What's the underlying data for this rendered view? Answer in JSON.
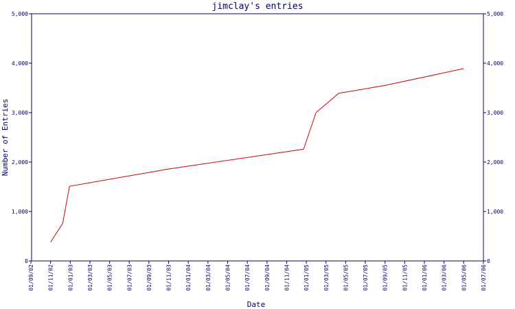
{
  "chart_data": {
    "type": "line",
    "title": "jimclay's entries",
    "xlabel": "Date",
    "ylabel": "Number of Entries",
    "ylim": [
      0,
      5000
    ],
    "y_ticks": [
      {
        "value": 0,
        "label": "0"
      },
      {
        "value": 1000,
        "label": "1,000"
      },
      {
        "value": 2000,
        "label": "2,000"
      },
      {
        "value": 3000,
        "label": "3,000"
      },
      {
        "value": 4000,
        "label": "4,000"
      },
      {
        "value": 5000,
        "label": "5,000"
      }
    ],
    "x_ticks": [
      "01/09/02",
      "01/11/02",
      "01/01/03",
      "01/03/03",
      "01/05/03",
      "01/07/03",
      "01/09/03",
      "01/11/03",
      "01/01/04",
      "01/03/04",
      "01/05/04",
      "01/07/04",
      "01/09/04",
      "01/11/04",
      "01/01/05",
      "01/03/05",
      "01/05/05",
      "01/07/05",
      "01/09/05",
      "01/11/05",
      "01/01/06",
      "01/03/06",
      "01/05/06",
      "01/07/06"
    ],
    "series": [
      {
        "color": "#cc0000",
        "points": [
          {
            "x": "2002-11-01",
            "y": 380
          },
          {
            "x": "2002-12-08",
            "y": 760
          },
          {
            "x": "2002-12-29",
            "y": 1510
          },
          {
            "x": "2003-11-01",
            "y": 1860
          },
          {
            "x": "2004-12-23",
            "y": 2260
          },
          {
            "x": "2005-01-31",
            "y": 3000
          },
          {
            "x": "2005-04-10",
            "y": 3390
          },
          {
            "x": "2005-09-01",
            "y": 3550
          },
          {
            "x": "2006-05-01",
            "y": 3890
          }
        ]
      }
    ],
    "grid": false,
    "right_axis_duplicate": true
  }
}
